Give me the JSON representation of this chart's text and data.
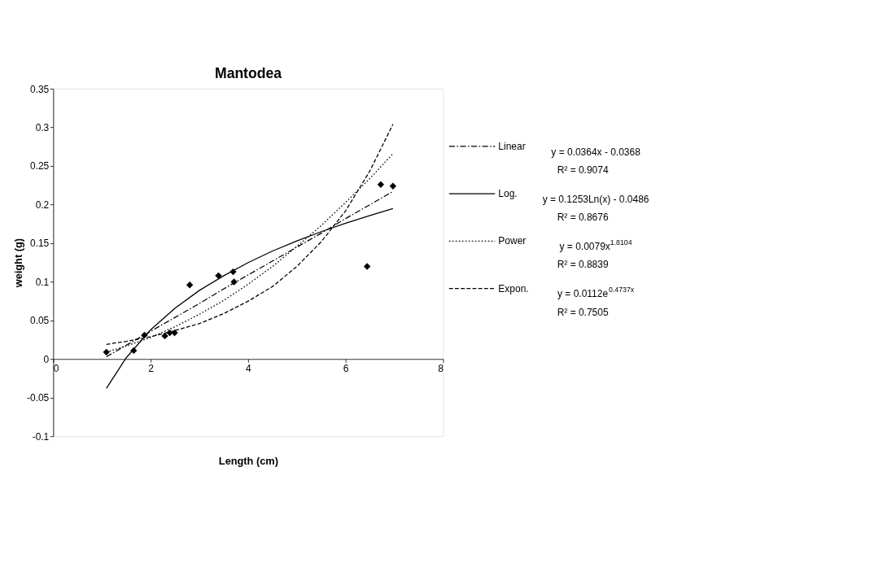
{
  "chart_data": {
    "type": "scatter",
    "title": "Mantodea",
    "xlabel": "Length (cm)",
    "ylabel": "weight (g)",
    "xlim": [
      0,
      8
    ],
    "xticks": [
      0,
      2,
      4,
      6,
      8
    ],
    "ylim": [
      -0.1,
      0.35
    ],
    "yticks": [
      -0.1,
      -0.05,
      0,
      0.05,
      0.1,
      0.15,
      0.2,
      0.25,
      0.3,
      0.35
    ],
    "grid": false,
    "legend": "right",
    "series": [
      {
        "marker": "diamond",
        "color": "#000000",
        "x": [
          1.09,
          1.65,
          1.87,
          2.29,
          2.39,
          2.49,
          2.8,
          3.39,
          3.69,
          3.71,
          6.44,
          6.72,
          6.97
        ],
        "values": [
          0.009,
          0.011,
          0.031,
          0.03,
          0.034,
          0.034,
          0.096,
          0.108,
          0.113,
          0.1,
          0.12,
          0.226,
          0.224
        ]
      },
      {
        "type": "line",
        "name": "Linear",
        "color": "#000000",
        "marker": "none",
        "line_style": "dashdot",
        "x": [
          1.09,
          1.5,
          2,
          2.5,
          3,
          3.5,
          4,
          4.5,
          5,
          5.5,
          6,
          6.5,
          6.97
        ],
        "values": [
          0.003,
          0.018,
          0.036,
          0.054,
          0.072,
          0.091,
          0.109,
          0.127,
          0.145,
          0.163,
          0.182,
          0.2,
          0.217
        ]
      },
      {
        "type": "line",
        "name": "Log.",
        "color": "#000000",
        "marker": "none",
        "line_style": "solid",
        "x": [
          1.09,
          1.5,
          2,
          2.5,
          3,
          3.5,
          4,
          4.5,
          5,
          5.5,
          6,
          6.5,
          6.97
        ],
        "values": [
          -0.038,
          0.002,
          0.038,
          0.066,
          0.089,
          0.108,
          0.125,
          0.14,
          0.153,
          0.165,
          0.176,
          0.186,
          0.195
        ]
      },
      {
        "type": "line",
        "name": "Power",
        "color": "#000000",
        "marker": "none",
        "line_style": "dotted",
        "x": [
          1.09,
          1.5,
          2,
          2.5,
          3,
          3.5,
          4,
          4.5,
          5,
          5.5,
          6,
          6.5,
          6.97
        ],
        "values": [
          0.009,
          0.017,
          0.028,
          0.042,
          0.058,
          0.076,
          0.097,
          0.12,
          0.146,
          0.173,
          0.203,
          0.234,
          0.266
        ]
      },
      {
        "type": "line",
        "name": "Expon.",
        "color": "#000000",
        "marker": "none",
        "line_style": "dashed",
        "x": [
          1.09,
          1.5,
          2,
          2.5,
          3,
          3.5,
          4,
          4.5,
          5,
          5.5,
          6,
          6.5,
          6.97
        ],
        "values": [
          0.019,
          0.023,
          0.029,
          0.037,
          0.046,
          0.059,
          0.075,
          0.094,
          0.12,
          0.152,
          0.192,
          0.244,
          0.304
        ]
      }
    ],
    "annotations": [
      "y = 0.0364x - 0.0368",
      "R² = 0.9074",
      "y = 0.1253Ln(x) - 0.0486",
      "R² = 0.8676",
      "y = 0.0079x$^{1.8104}$",
      "R² = 0.8839",
      "y = 0.0112e$^{0.4737x}$",
      "R² = 0.7505"
    ]
  }
}
